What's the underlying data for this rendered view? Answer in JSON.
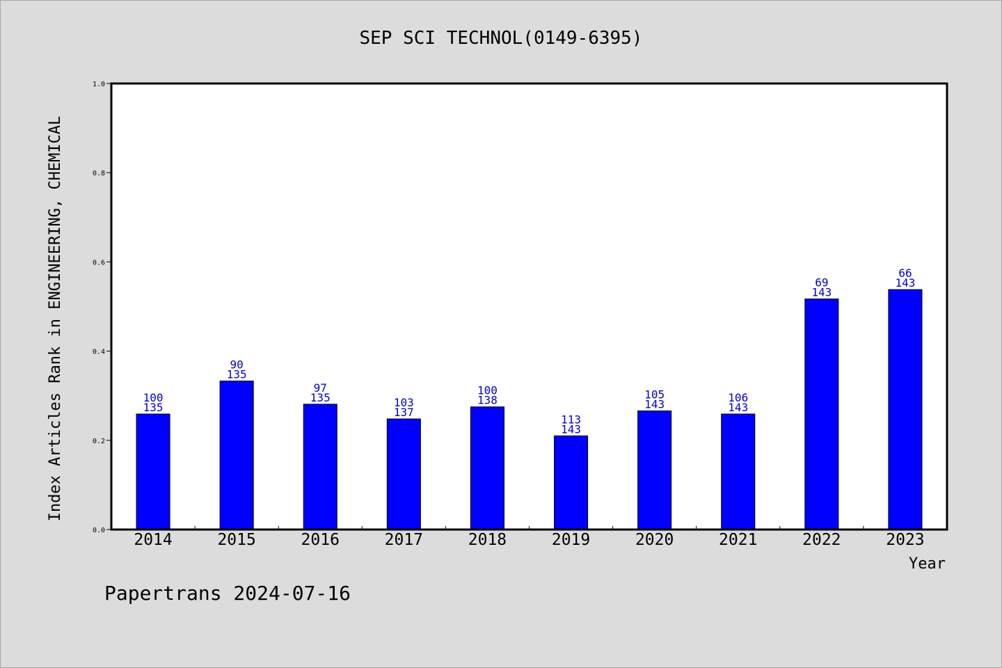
{
  "footer": "Papertrans 2024-07-16",
  "chart_data": {
    "type": "bar",
    "title": "SEP SCI TECHNOL(0149-6395)",
    "xlabel": "Year",
    "ylabel": "Index Articles Rank in ENGINEERING, CHEMICAL",
    "ylim": [
      0,
      1.0
    ],
    "yticks": [
      "0.0",
      "0.2",
      "0.4",
      "0.6",
      "0.8",
      "1.0"
    ],
    "categories": [
      "2014",
      "2015",
      "2016",
      "2017",
      "2018",
      "2019",
      "2020",
      "2021",
      "2022",
      "2023"
    ],
    "values": [
      0.259,
      0.333,
      0.281,
      0.248,
      0.275,
      0.21,
      0.266,
      0.259,
      0.517,
      0.538
    ],
    "ranks": [
      "100",
      "90",
      "97",
      "103",
      "100",
      "113",
      "105",
      "106",
      "69",
      "66"
    ],
    "totals": [
      "135",
      "135",
      "135",
      "137",
      "138",
      "143",
      "143",
      "143",
      "143",
      "143"
    ],
    "bar_color": "#0000ff",
    "label_color": "#0000cc",
    "legend": "none",
    "grid": false
  }
}
